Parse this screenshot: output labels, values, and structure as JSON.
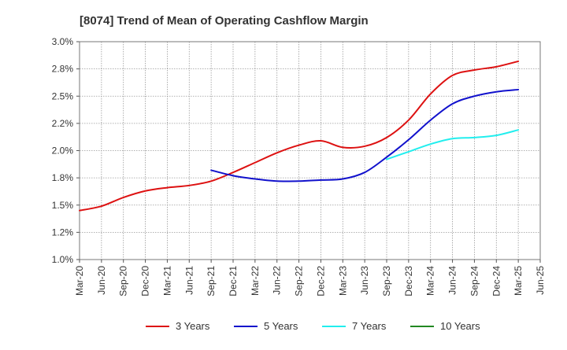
{
  "chart_data": {
    "type": "line",
    "title": "[8074]  Trend of Mean of Operating Cashflow Margin",
    "xlabel": "",
    "ylabel": "",
    "x_ticks": [
      "Mar-20",
      "Jun-20",
      "Sep-20",
      "Dec-20",
      "Mar-21",
      "Jun-21",
      "Sep-21",
      "Dec-21",
      "Mar-22",
      "Jun-22",
      "Sep-22",
      "Dec-22",
      "Mar-23",
      "Jun-23",
      "Sep-23",
      "Dec-23",
      "Mar-24",
      "Jun-24",
      "Sep-24",
      "Dec-24",
      "Mar-25",
      "Jun-25"
    ],
    "y_ticks": [
      "1.0%",
      "1.2%",
      "1.5%",
      "1.8%",
      "2.0%",
      "2.2%",
      "2.5%",
      "2.8%",
      "3.0%"
    ],
    "ylim": [
      1.0,
      3.0
    ],
    "grid": true,
    "legend_position": "bottom",
    "series": [
      {
        "name": "3 Years",
        "color": "#dd1111",
        "x": [
          "Mar-20",
          "Jun-20",
          "Sep-20",
          "Dec-20",
          "Mar-21",
          "Jun-21",
          "Sep-21",
          "Dec-21",
          "Mar-22",
          "Jun-22",
          "Sep-22",
          "Dec-22",
          "Mar-23",
          "Jun-23",
          "Sep-23",
          "Dec-23",
          "Mar-24",
          "Jun-24",
          "Sep-24",
          "Dec-24",
          "Mar-25"
        ],
        "values": [
          1.45,
          1.49,
          1.57,
          1.63,
          1.66,
          1.68,
          1.72,
          1.8,
          1.89,
          1.98,
          2.05,
          2.09,
          2.03,
          2.04,
          2.12,
          2.28,
          2.52,
          2.69,
          2.74,
          2.77,
          2.82
        ]
      },
      {
        "name": "5 Years",
        "color": "#1111cc",
        "x": [
          "Sep-21",
          "Dec-21",
          "Mar-22",
          "Jun-22",
          "Sep-22",
          "Dec-22",
          "Mar-23",
          "Jun-23",
          "Sep-23",
          "Dec-23",
          "Mar-24",
          "Jun-24",
          "Sep-24",
          "Dec-24",
          "Mar-25"
        ],
        "values": [
          1.82,
          1.77,
          1.74,
          1.72,
          1.72,
          1.73,
          1.74,
          1.8,
          1.94,
          2.1,
          2.28,
          2.43,
          2.5,
          2.54,
          2.56
        ]
      },
      {
        "name": "7 Years",
        "color": "#22eeee",
        "x": [
          "Sep-23",
          "Dec-23",
          "Mar-24",
          "Jun-24",
          "Sep-24",
          "Dec-24",
          "Mar-25"
        ],
        "values": [
          1.92,
          1.99,
          2.06,
          2.11,
          2.12,
          2.14,
          2.19
        ]
      },
      {
        "name": "10 Years",
        "color": "#228822",
        "x": [],
        "values": []
      }
    ]
  }
}
